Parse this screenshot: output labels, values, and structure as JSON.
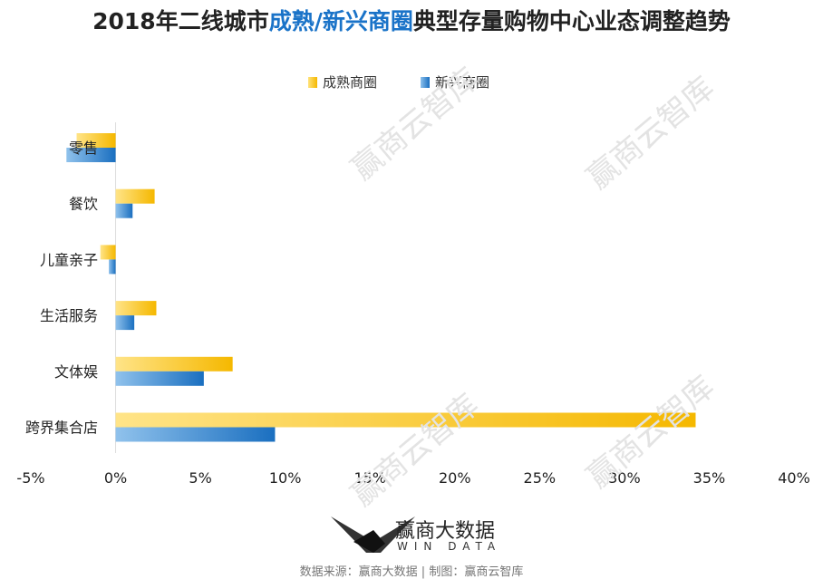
{
  "title": {
    "prefix": "2018年二线城市",
    "highlight": "成熟/新兴商圈",
    "suffix": "典型存量购物中心业态调整趋势"
  },
  "watermark": "赢商云智库",
  "logo": {
    "name": "赢商大数据",
    "sub": "WIN DATA"
  },
  "source": "数据来源：赢商大数据 | 制图：赢商云智库",
  "colors": {
    "mature": "#f5b800",
    "emerging": "#1a6fc0"
  },
  "chart_data": {
    "type": "bar",
    "orientation": "horizontal",
    "categories": [
      "零售",
      "餐饮",
      "儿童亲子",
      "生活服务",
      "文体娱",
      "跨界集合店"
    ],
    "series": [
      {
        "name": "成熟商圈",
        "values": [
          -2.3,
          2.3,
          -0.9,
          2.4,
          6.9,
          34.2
        ]
      },
      {
        "name": "新兴商圈",
        "values": [
          -2.9,
          1.0,
          -0.4,
          1.1,
          5.2,
          9.4
        ]
      }
    ],
    "xlim": [
      -5,
      40
    ],
    "xticks": [
      "-5%",
      "0%",
      "5%",
      "10%",
      "15%",
      "20%",
      "25%",
      "30%",
      "35%",
      "40%"
    ],
    "legend": "top",
    "grid": false
  }
}
